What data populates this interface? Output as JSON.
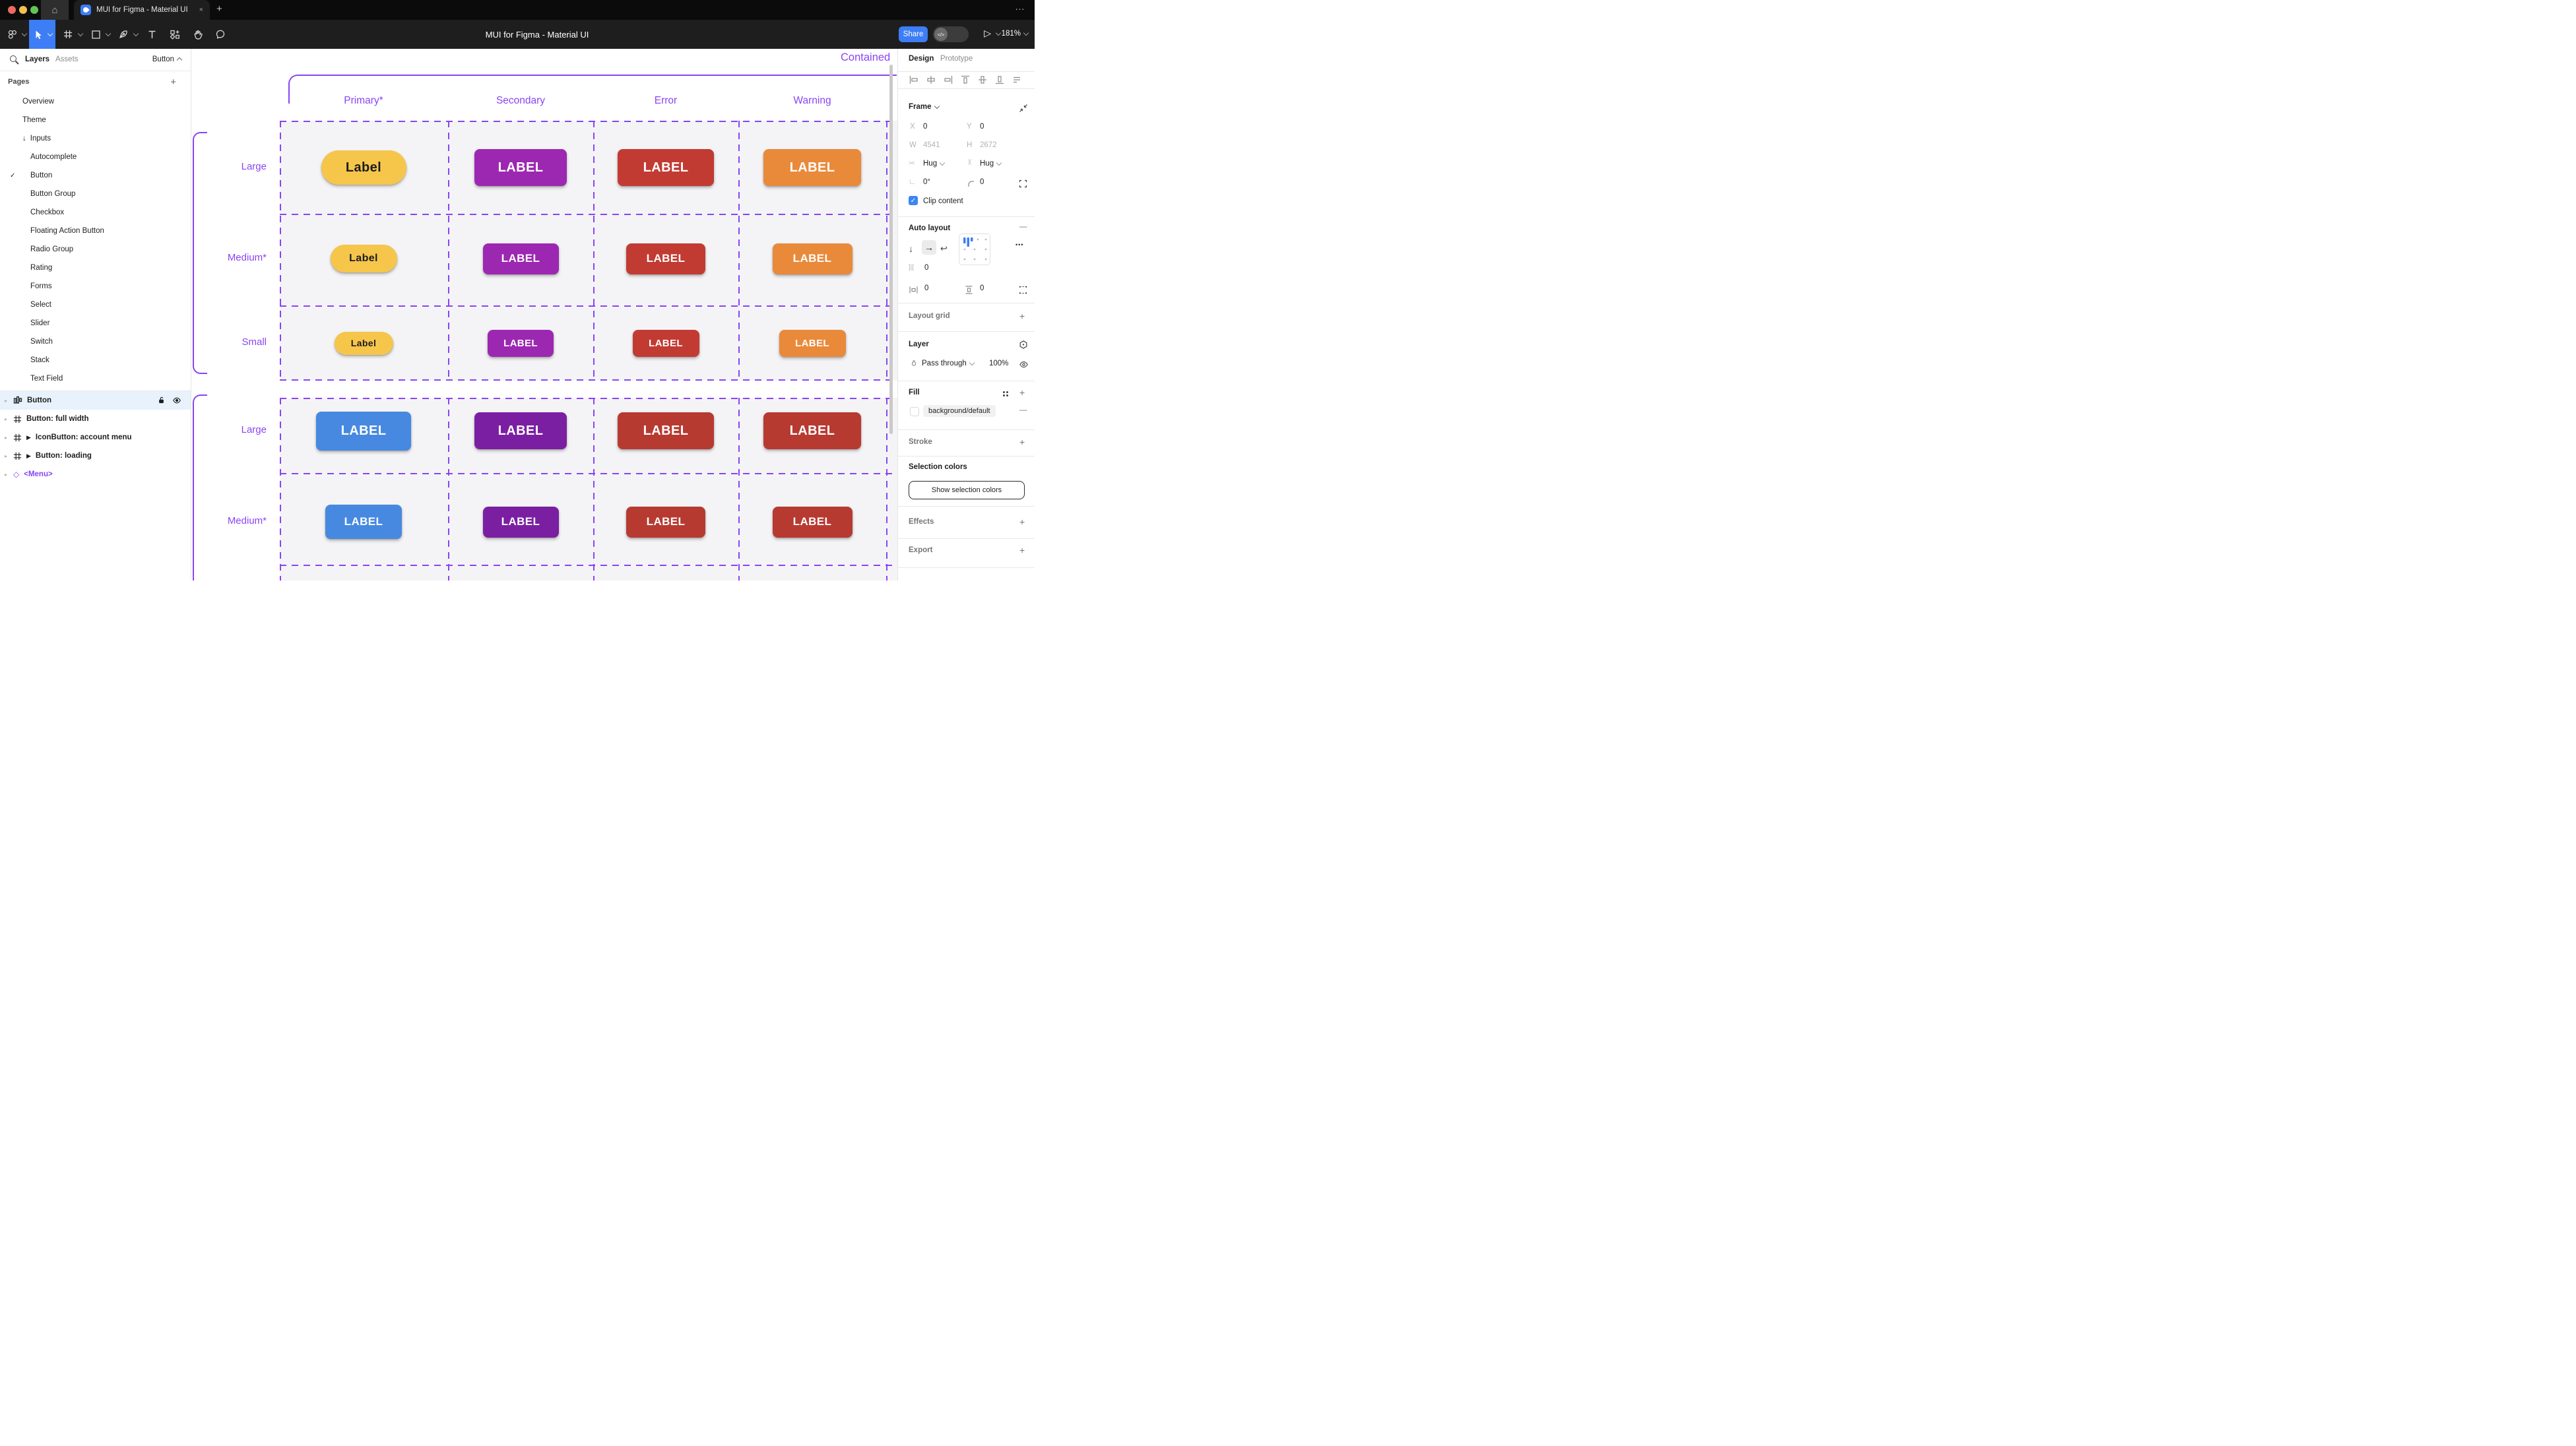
{
  "colors": {
    "accent_blue": "#3D7DF5",
    "purple": "#8A44F4",
    "primary_yellow": "#F6C64B",
    "secondary_purple": "#9C28B1",
    "error_red": "#C23B33",
    "warning_orange": "#E98A3B",
    "contained_blue": "#4789E0",
    "contained_purple": "#7B1FA2",
    "contained_red": "#B73A31",
    "selected_row_bg": "#E8F2FC",
    "grid_row_fill": "#F4F4F6",
    "mac_red": "#ED6A5E",
    "mac_yellow": "#F4BF4F",
    "mac_green": "#61C454"
  },
  "icons": {
    "home": "⌂",
    "close_tab": "×",
    "new_tab": "+",
    "window_more": "…",
    "play": "▷",
    "check": "✓",
    "inputs_arrow": "↓",
    "disclosure": "▸",
    "instance_play": "▶",
    "component": "◇",
    "direction_down": "↓",
    "direction_right": "→",
    "wrap": "↩",
    "gap": "]|[",
    "hug": "><",
    "rotation_angle": "∟",
    "more_dots": "•••",
    "plus": "+",
    "minus": "—",
    "dev_toggle": "</>"
  },
  "titlebar": {
    "tab_title": "MUI for Figma - Material UI"
  },
  "toolbar": {
    "document_title": "MUI for Figma - Material UI",
    "share_label": "Share",
    "zoom_level": "181%"
  },
  "sidebar": {
    "tabs": {
      "layers": "Layers",
      "assets": "Assets"
    },
    "page_selector": "Button",
    "pages_header": "Pages",
    "pages": [
      {
        "label": "Overview",
        "level": 1
      },
      {
        "label": "Theme",
        "level": 1
      },
      {
        "label": "Inputs",
        "level": 1,
        "prefix": "↓"
      },
      {
        "label": "Autocomplete",
        "level": 2
      },
      {
        "label": "Button",
        "level": 2,
        "checked": true
      },
      {
        "label": "Button Group",
        "level": 2
      },
      {
        "label": "Checkbox",
        "level": 2
      },
      {
        "label": "Floating Action Button",
        "level": 2
      },
      {
        "label": "Radio Group",
        "level": 2
      },
      {
        "label": "Rating",
        "level": 2
      },
      {
        "label": "Forms",
        "level": 2
      },
      {
        "label": "Select",
        "level": 2
      },
      {
        "label": "Slider",
        "level": 2
      },
      {
        "label": "Switch",
        "level": 2
      },
      {
        "label": "Stack",
        "level": 2
      },
      {
        "label": "Text Field",
        "level": 2
      }
    ],
    "layers": [
      {
        "name": "Button",
        "icon": "autolayout",
        "selected": true
      },
      {
        "name": "Button: full width",
        "icon": "frame"
      },
      {
        "name": "IconButton: account menu",
        "icon": "frame",
        "play": true
      },
      {
        "name": "Button: loading",
        "icon": "frame",
        "play": true
      },
      {
        "name": "<Menu>",
        "icon": "component",
        "purple": true
      }
    ]
  },
  "canvas": {
    "section_title": "Contained",
    "columns": [
      "Primary*",
      "Secondary",
      "Error",
      "Warning"
    ],
    "rows": [
      {
        "label": "Large",
        "cells": [
          {
            "text": "Label",
            "bg": "#F6C64B",
            "fg": "#1C1B1F",
            "pill": true,
            "w": 129,
            "h": 52,
            "fs": 20
          },
          {
            "text": "LABEL",
            "bg": "#9C28B1",
            "fg": "#FFFFFF",
            "w": 140,
            "h": 56,
            "fs": 20
          },
          {
            "text": "LABEL",
            "bg": "#C23B33",
            "fg": "#FFFFFF",
            "w": 146,
            "h": 56,
            "fs": 20
          },
          {
            "text": "LABEL",
            "bg": "#E98A3B",
            "fg": "#FFFFFF",
            "w": 148,
            "h": 56,
            "fs": 20
          }
        ]
      },
      {
        "label": "Medium*",
        "cells": [
          {
            "text": "Label",
            "bg": "#F6C64B",
            "fg": "#1C1B1F",
            "pill": true,
            "w": 101,
            "h": 42,
            "fs": 16
          },
          {
            "text": "LABEL",
            "bg": "#9C28B1",
            "fg": "#FFFFFF",
            "w": 115,
            "h": 47,
            "fs": 17
          },
          {
            "text": "LABEL",
            "bg": "#C23B33",
            "fg": "#FFFFFF",
            "w": 120,
            "h": 47,
            "fs": 17
          },
          {
            "text": "LABEL",
            "bg": "#E98A3B",
            "fg": "#FFFFFF",
            "w": 121,
            "h": 47,
            "fs": 17
          }
        ]
      },
      {
        "label": "Small",
        "cells": [
          {
            "text": "Label",
            "bg": "#F6C64B",
            "fg": "#1C1B1F",
            "pill": true,
            "w": 89,
            "h": 35,
            "fs": 14
          },
          {
            "text": "LABEL",
            "bg": "#9C28B1",
            "fg": "#FFFFFF",
            "w": 100,
            "h": 41,
            "fs": 15
          },
          {
            "text": "LABEL",
            "bg": "#C23B33",
            "fg": "#FFFFFF",
            "w": 101,
            "h": 41,
            "fs": 15
          },
          {
            "text": "LABEL",
            "bg": "#E98A3B",
            "fg": "#FFFFFF",
            "w": 101,
            "h": 41,
            "fs": 15
          }
        ]
      },
      {
        "label": "Large",
        "cells": [
          {
            "text": "LABEL",
            "bg": "#4789E0",
            "fg": "#FFFFFF",
            "w": 144,
            "h": 59,
            "fs": 20
          },
          {
            "text": "LABEL",
            "bg": "#7B1FA2",
            "fg": "#FFFFFF",
            "w": 140,
            "h": 56,
            "fs": 20
          },
          {
            "text": "LABEL",
            "bg": "#B73A31",
            "fg": "#FFFFFF",
            "w": 146,
            "h": 56,
            "fs": 20
          },
          {
            "text": "LABEL",
            "bg": "#B73A31",
            "fg": "#FFFFFF",
            "w": 148,
            "h": 56,
            "fs": 20
          }
        ]
      },
      {
        "label": "Medium*",
        "cells": [
          {
            "text": "LABEL",
            "bg": "#4789E0",
            "fg": "#FFFFFF",
            "w": 116,
            "h": 52,
            "fs": 17
          },
          {
            "text": "LABEL",
            "bg": "#7B1FA2",
            "fg": "#FFFFFF",
            "w": 115,
            "h": 47,
            "fs": 17
          },
          {
            "text": "LABEL",
            "bg": "#B73A31",
            "fg": "#FFFFFF",
            "w": 120,
            "h": 47,
            "fs": 17
          },
          {
            "text": "LABEL",
            "bg": "#B73A31",
            "fg": "#FFFFFF",
            "w": 121,
            "h": 47,
            "fs": 17
          }
        ]
      }
    ]
  },
  "panel": {
    "tabs": {
      "design": "Design",
      "prototype": "Prototype"
    },
    "frame": {
      "header": "Frame",
      "x_label": "X",
      "x_value": "0",
      "y_label": "Y",
      "y_value": "0",
      "w_label": "W",
      "w_value": "4541",
      "h_label": "H",
      "h_value": "2672",
      "hug_h": "Hug",
      "hug_v": "Hug",
      "rotation": "0°",
      "corner_radius": "0",
      "clip_label": "Clip content"
    },
    "auto_layout": {
      "header": "Auto layout",
      "gap_value": "0",
      "padding_h": "0",
      "padding_v": "0"
    },
    "layout_grid": {
      "header": "Layout grid"
    },
    "layer": {
      "header": "Layer",
      "blend_mode": "Pass through",
      "opacity": "100%"
    },
    "fill": {
      "header": "Fill",
      "style_name": "background/default"
    },
    "stroke": {
      "header": "Stroke"
    },
    "selection_colors": {
      "header": "Selection colors",
      "button_label": "Show selection colors"
    },
    "effects": {
      "header": "Effects"
    },
    "export": {
      "header": "Export"
    }
  }
}
